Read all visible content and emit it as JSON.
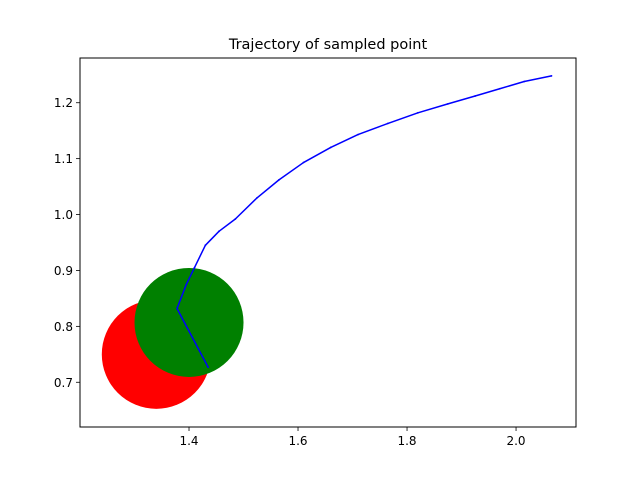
{
  "chart_data": {
    "type": "line",
    "title": "Trajectory of sampled point",
    "xlabel": "",
    "ylabel": "",
    "xlim": [
      1.2,
      2.11
    ],
    "ylim": [
      0.62,
      1.28
    ],
    "xticks": [
      1.4,
      1.6,
      1.8,
      2.0
    ],
    "xtick_labels": [
      "1.4",
      "1.6",
      "1.8",
      "2.0"
    ],
    "yticks": [
      0.7,
      0.8,
      0.9,
      1.0,
      1.1,
      1.2
    ],
    "ytick_labels": [
      "0.7",
      "0.8",
      "0.9",
      "1.0",
      "1.1",
      "1.2"
    ],
    "grid": false,
    "legend": "none",
    "circles": [
      {
        "cx": 1.34,
        "cy": 0.75,
        "r": 0.1,
        "color": "#ff0000"
      },
      {
        "cx": 1.4,
        "cy": 0.807,
        "r": 0.1,
        "color": "#008000"
      }
    ],
    "series": [
      {
        "color": "#0000ff",
        "x": [
          1.435,
          1.378,
          1.395,
          1.41,
          1.43,
          1.455,
          1.485,
          1.525,
          1.565,
          1.61,
          1.66,
          1.71,
          1.765,
          1.82,
          1.875,
          1.925,
          1.97,
          2.015,
          2.065
        ],
        "y": [
          0.727,
          0.832,
          0.875,
          0.905,
          0.945,
          0.97,
          0.992,
          1.03,
          1.062,
          1.093,
          1.12,
          1.143,
          1.163,
          1.182,
          1.198,
          1.212,
          1.225,
          1.238,
          1.248
        ]
      }
    ]
  }
}
